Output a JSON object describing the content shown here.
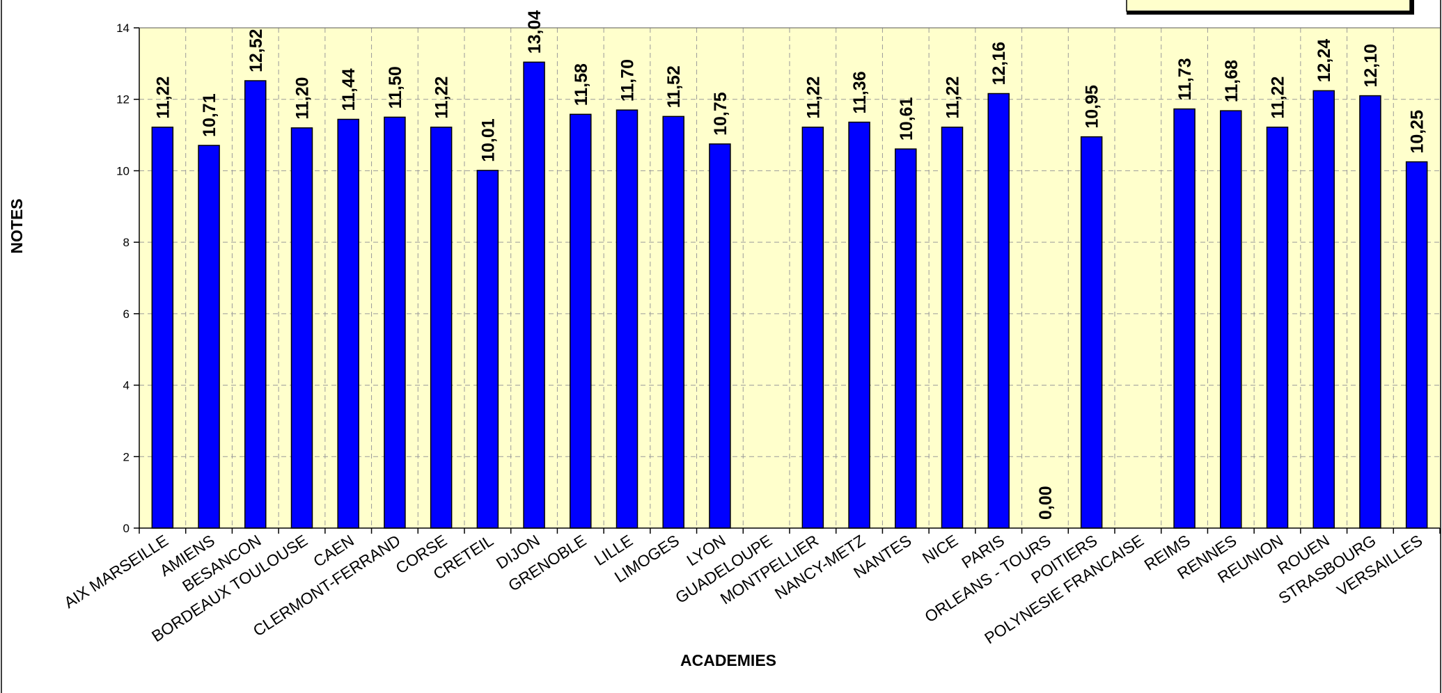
{
  "chart_data": {
    "type": "bar",
    "xlabel": "ACADEMIES",
    "ylabel": "NOTES",
    "ylim": [
      0,
      14
    ],
    "yticks": [
      0,
      2,
      4,
      6,
      8,
      10,
      12,
      14
    ],
    "grid": true,
    "legend": "top-right (partially visible, empty)",
    "colors": {
      "bar": "#0000ff",
      "plot_background": "#ffffcc",
      "legend_background": "#ffffcc"
    },
    "categories": [
      "AIX  MARSEILLE",
      "AMIENS",
      "BESANCON",
      "BORDEAUX TOULOUSE",
      "CAEN",
      "CLERMONT-FERRAND",
      "CORSE",
      "CRETEIL",
      "DIJON",
      "GRENOBLE",
      "LILLE",
      "LIMOGES",
      "LYON",
      "GUADELOUPE",
      "MONTPELLIER",
      "NANCY-METZ",
      "NANTES",
      "NICE",
      "PARIS",
      "ORLEANS - TOURS",
      "POITIERS",
      "POLYNESIE FRANCAISE",
      "REIMS",
      "RENNES",
      "REUNION",
      "ROUEN",
      "STRASBOURG",
      "VERSAILLES"
    ],
    "values": [
      11.22,
      10.71,
      12.52,
      11.2,
      11.44,
      11.5,
      11.22,
      10.01,
      13.04,
      11.58,
      11.7,
      11.52,
      10.75,
      null,
      11.22,
      11.36,
      10.61,
      11.22,
      12.16,
      0.0,
      10.95,
      null,
      11.73,
      11.68,
      11.22,
      12.24,
      12.1,
      10.25
    ],
    "value_labels": [
      "11,22",
      "10,71",
      "12,52",
      "11,20",
      "11,44",
      "11,50",
      "11,22",
      "10,01",
      "13,04",
      "11,58",
      "11,70",
      "11,52",
      "10,75",
      "",
      "11,22",
      "11,36",
      "10,61",
      "11,22",
      "12,16",
      "0,00",
      "10,95",
      "",
      "11,73",
      "11,68",
      "11,22",
      "12,24",
      "12,10",
      "10,25"
    ]
  }
}
